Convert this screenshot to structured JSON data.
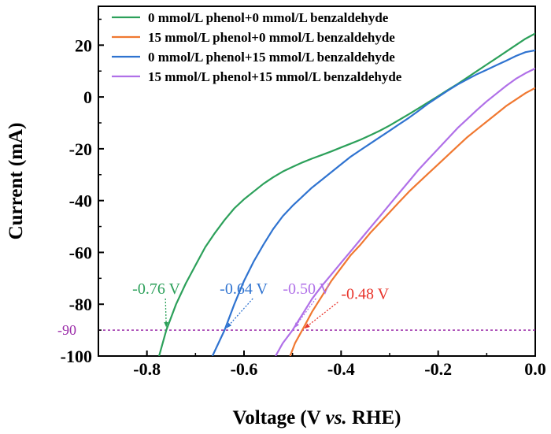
{
  "chart_data": {
    "type": "line",
    "xlabel_parts": [
      "Voltage (V ",
      "vs.",
      " RHE)"
    ],
    "ylabel": "Current (mA)",
    "xlim": [
      -0.9,
      0.0
    ],
    "ylim": [
      -100,
      35
    ],
    "x_ticks": [
      -0.8,
      -0.6,
      -0.4,
      -0.2,
      0.0
    ],
    "x_tick_labels": [
      "-0.8",
      "-0.6",
      "-0.4",
      "-0.2",
      "0.0"
    ],
    "y_ticks": [
      -100,
      -80,
      -60,
      -40,
      -20,
      0,
      20
    ],
    "y_tick_labels": [
      "-100",
      "-80",
      "-60",
      "-40",
      "-20",
      "0",
      "20"
    ],
    "legend_position": "top-right",
    "series": [
      {
        "name": "0 mmol/L phenol+0 mmol/L benzaldehyde",
        "color": "#2ca05a",
        "x": [
          -0.775,
          -0.76,
          -0.74,
          -0.72,
          -0.7,
          -0.68,
          -0.66,
          -0.64,
          -0.62,
          -0.6,
          -0.58,
          -0.56,
          -0.54,
          -0.52,
          -0.5,
          -0.48,
          -0.46,
          -0.44,
          -0.42,
          -0.4,
          -0.38,
          -0.36,
          -0.34,
          -0.32,
          -0.3,
          -0.28,
          -0.26,
          -0.24,
          -0.22,
          -0.2,
          -0.18,
          -0.16,
          -0.14,
          -0.12,
          -0.1,
          -0.08,
          -0.06,
          -0.04,
          -0.02,
          0.0
        ],
        "y": [
          -100,
          -90,
          -80,
          -72,
          -65,
          -58,
          -52.5,
          -47.5,
          -43,
          -39.5,
          -36.5,
          -33.5,
          -31,
          -28.8,
          -27,
          -25.3,
          -23.8,
          -22.4,
          -21,
          -19.5,
          -18,
          -16.5,
          -14.8,
          -13,
          -11,
          -8.8,
          -6.6,
          -4.3,
          -2,
          0.3,
          2.7,
          5,
          7.5,
          10,
          12.5,
          15,
          17.5,
          20,
          22.5,
          24.5
        ]
      },
      {
        "name": "15 mmol/L phenol+0 mmol/L benzaldehyde",
        "color": "#f07830",
        "x": [
          -0.505,
          -0.495,
          -0.48,
          -0.46,
          -0.44,
          -0.42,
          -0.4,
          -0.38,
          -0.36,
          -0.34,
          -0.32,
          -0.3,
          -0.28,
          -0.26,
          -0.24,
          -0.22,
          -0.2,
          -0.18,
          -0.16,
          -0.14,
          -0.12,
          -0.1,
          -0.08,
          -0.06,
          -0.04,
          -0.02,
          0.0
        ],
        "y": [
          -100,
          -95,
          -90,
          -83,
          -77,
          -71,
          -66,
          -61,
          -57,
          -52.5,
          -48.5,
          -44.5,
          -40.5,
          -36.5,
          -33,
          -29.5,
          -26,
          -22.5,
          -19,
          -15.5,
          -12.5,
          -9.5,
          -6.5,
          -3.5,
          -1,
          1.5,
          3.5
        ]
      },
      {
        "name": "0 mmol/L phenol+15 mmol/L benzaldehyde",
        "color": "#2f73d0",
        "x": [
          -0.665,
          -0.64,
          -0.62,
          -0.6,
          -0.58,
          -0.56,
          -0.54,
          -0.52,
          -0.5,
          -0.48,
          -0.46,
          -0.44,
          -0.42,
          -0.4,
          -0.38,
          -0.36,
          -0.34,
          -0.32,
          -0.3,
          -0.28,
          -0.26,
          -0.24,
          -0.22,
          -0.2,
          -0.18,
          -0.16,
          -0.14,
          -0.12,
          -0.1,
          -0.08,
          -0.06,
          -0.04,
          -0.02,
          0.0
        ],
        "y": [
          -100,
          -90,
          -80,
          -71,
          -63.5,
          -57,
          -51,
          -46,
          -42,
          -38.5,
          -35,
          -32,
          -29,
          -26,
          -23,
          -20.5,
          -18,
          -15.5,
          -13,
          -10.5,
          -8,
          -5.3,
          -2.5,
          0,
          2.5,
          4.8,
          6.8,
          8.8,
          10.5,
          12.3,
          14,
          15.8,
          17.3,
          18
        ]
      },
      {
        "name": "15 mmol/L phenol+15 mmol/L benzaldehyde",
        "color": "#b070e8",
        "x": [
          -0.535,
          -0.52,
          -0.5,
          -0.48,
          -0.46,
          -0.44,
          -0.42,
          -0.4,
          -0.38,
          -0.36,
          -0.34,
          -0.32,
          -0.3,
          -0.28,
          -0.26,
          -0.24,
          -0.22,
          -0.2,
          -0.18,
          -0.16,
          -0.14,
          -0.12,
          -0.1,
          -0.08,
          -0.06,
          -0.04,
          -0.02,
          0.0
        ],
        "y": [
          -100,
          -95,
          -90,
          -84,
          -78,
          -73,
          -68.5,
          -64,
          -59.5,
          -55,
          -50.5,
          -46,
          -41.5,
          -37,
          -32.5,
          -28,
          -24,
          -20,
          -16,
          -12,
          -8.5,
          -5,
          -1.7,
          1.3,
          4.3,
          7,
          9.2,
          11
        ]
      }
    ],
    "reference_line": {
      "y": -90,
      "label": "-90",
      "color": "#9a2aa8"
    },
    "annotations": [
      {
        "text": "-0.76 V",
        "color": "#2ca05a",
        "point": [
          -0.76,
          -90
        ],
        "text_at": [
          -0.83,
          -76
        ]
      },
      {
        "text": "-0.64 V",
        "color": "#2f73d0",
        "point": [
          -0.64,
          -90
        ],
        "text_at": [
          -0.65,
          -76
        ]
      },
      {
        "text": "-0.50 V",
        "color": "#b070e8",
        "point": [
          -0.5,
          -90
        ],
        "text_at": [
          -0.52,
          -76
        ]
      },
      {
        "text": "-0.48 V",
        "color": "#e8332a",
        "point": [
          -0.48,
          -90
        ],
        "text_at": [
          -0.4,
          -78
        ]
      }
    ]
  }
}
